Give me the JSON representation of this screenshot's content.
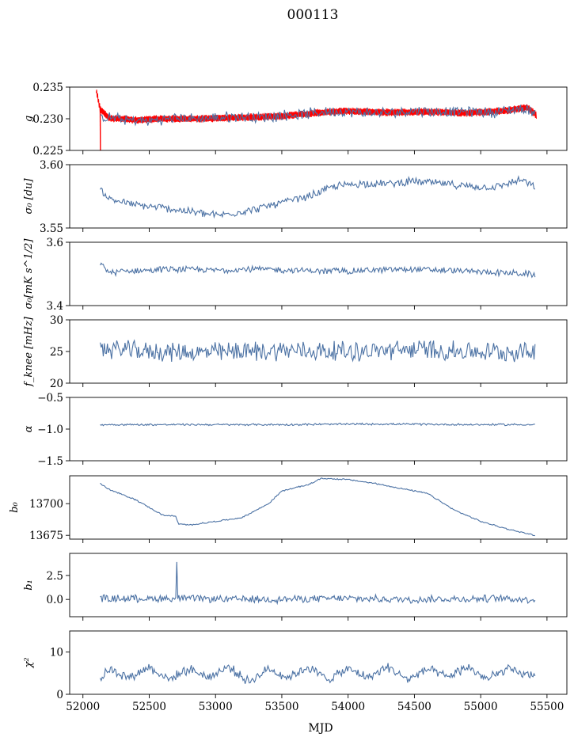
{
  "figure": {
    "title": "000113",
    "xlabel": "MJD"
  },
  "colors": {
    "series": "#4c72a4",
    "overlay": "#ff0000",
    "axis": "#000000"
  },
  "chart_data": [
    {
      "id": "g",
      "type": "line",
      "ylabel": "g",
      "ylim": [
        0.225,
        0.235
      ],
      "yticks": [
        "0.225",
        "0.230",
        "0.235"
      ],
      "xlim": [
        51900,
        55650
      ],
      "grid": false,
      "series": [
        {
          "style": "band",
          "color": "#ff0000",
          "x": [
            52100,
            52130,
            52200,
            52400,
            52600,
            52900,
            53200,
            53500,
            53800,
            54000,
            54300,
            54600,
            54900,
            55200,
            55350,
            55420
          ],
          "y": [
            0.2345,
            0.2315,
            0.2301,
            0.2298,
            0.23,
            0.23,
            0.2302,
            0.2304,
            0.231,
            0.2312,
            0.231,
            0.2311,
            0.2309,
            0.2313,
            0.2318,
            0.2306
          ],
          "spread": 0.0006
        },
        {
          "style": "line",
          "color": "#4c72a4",
          "x": [
            52130,
            52200,
            52300,
            52500,
            52700,
            52900,
            53100,
            53300,
            53500,
            53700,
            53900,
            54100,
            54300,
            54500,
            54700,
            54900,
            55100,
            55300,
            55410
          ],
          "y": [
            0.23,
            0.2302,
            0.2298,
            0.2297,
            0.2301,
            0.23,
            0.2303,
            0.2302,
            0.2305,
            0.2308,
            0.2312,
            0.231,
            0.2309,
            0.2313,
            0.2311,
            0.2312,
            0.231,
            0.2316,
            0.2312
          ],
          "noise": 0.001
        }
      ]
    },
    {
      "id": "sigma0_du",
      "type": "line",
      "ylabel": "σ₀ [du]",
      "ylim": [
        3.55,
        3.6
      ],
      "yticks": [
        "3.55",
        "3.60"
      ],
      "series": [
        {
          "color": "#4c72a4",
          "x": [
            52130,
            52200,
            52400,
            52600,
            52800,
            53000,
            53100,
            53300,
            53500,
            53700,
            53900,
            54100,
            54300,
            54500,
            54700,
            54900,
            55100,
            55300,
            55410
          ],
          "y": [
            3.58,
            3.573,
            3.568,
            3.566,
            3.563,
            3.56,
            3.561,
            3.565,
            3.57,
            3.575,
            3.583,
            3.585,
            3.585,
            3.587,
            3.585,
            3.583,
            3.582,
            3.588,
            3.582
          ],
          "noise": 0.0035
        }
      ]
    },
    {
      "id": "sigma0_mk",
      "type": "line",
      "ylabel": "σ₀[mK s^1/2]",
      "ylim": [
        3.4,
        3.6
      ],
      "yticks": [
        "3.4",
        "3.6"
      ],
      "series": [
        {
          "color": "#4c72a4",
          "x": [
            52130,
            52200,
            52400,
            52700,
            53000,
            53300,
            53600,
            53900,
            54200,
            54500,
            54800,
            55100,
            55410
          ],
          "y": [
            3.53,
            3.505,
            3.51,
            3.515,
            3.512,
            3.515,
            3.512,
            3.508,
            3.512,
            3.515,
            3.51,
            3.505,
            3.498
          ],
          "noise": 0.012
        }
      ]
    },
    {
      "id": "fknee",
      "type": "line",
      "ylabel": "f_knee [mHz]",
      "ylim": [
        20,
        30
      ],
      "yticks": [
        "20",
        "25",
        "30"
      ],
      "series": [
        {
          "color": "#4c72a4",
          "x": [
            52130,
            52500,
            53000,
            53500,
            54000,
            54500,
            55000,
            55410
          ],
          "y": [
            25.5,
            25.0,
            24.8,
            25.2,
            25.0,
            25.3,
            24.9,
            25.0
          ],
          "noise": 1.8
        }
      ]
    },
    {
      "id": "alpha",
      "type": "line",
      "ylabel": "α",
      "ylim": [
        -1.5,
        -0.5
      ],
      "yticks": [
        "−1.5",
        "−1.0",
        "−0.5"
      ],
      "series": [
        {
          "color": "#4c72a4",
          "x": [
            52130,
            52800,
            53500,
            54200,
            54900,
            55410
          ],
          "y": [
            -0.93,
            -0.93,
            -0.93,
            -0.92,
            -0.93,
            -0.93
          ],
          "noise": 0.018
        }
      ]
    },
    {
      "id": "b0",
      "type": "line",
      "ylabel": "b₀",
      "ylim": [
        13672,
        13722
      ],
      "yticks": [
        "13675",
        "13700"
      ],
      "series": [
        {
          "color": "#4c72a4",
          "x": [
            52130,
            52200,
            52400,
            52600,
            52700,
            52720,
            52800,
            53000,
            53200,
            53400,
            53500,
            53700,
            53800,
            54000,
            54200,
            54400,
            54600,
            54800,
            55000,
            55200,
            55410
          ],
          "y": [
            13716,
            13711,
            13703,
            13691,
            13690,
            13684,
            13683,
            13686,
            13689,
            13700,
            13710,
            13715,
            13720,
            13719,
            13716,
            13712,
            13708,
            13695,
            13686,
            13680,
            13675
          ],
          "noise": 0.6
        }
      ]
    },
    {
      "id": "b1",
      "type": "line",
      "ylabel": "b₁",
      "ylim": [
        -1.8,
        4.8
      ],
      "yticks": [
        "0.0",
        "2.5"
      ],
      "series": [
        {
          "color": "#4c72a4",
          "x": [
            52130,
            52700,
            53300,
            53900,
            54500,
            55100,
            55410
          ],
          "y": [
            0.1,
            0.1,
            0.0,
            0.1,
            0.0,
            0.1,
            0.0
          ],
          "noise": 0.45,
          "spikes": [
            {
              "x": 52710,
              "y": 3.9
            }
          ]
        }
      ]
    },
    {
      "id": "chi2",
      "type": "line",
      "ylabel": "χ²",
      "ylim": [
        0,
        15
      ],
      "yticks": [
        "0",
        "10"
      ],
      "series": [
        {
          "color": "#4c72a4",
          "x": [
            52130,
            52200,
            52350,
            52500,
            52650,
            52800,
            52950,
            53100,
            53250,
            53400,
            53550,
            53700,
            53850,
            54000,
            54150,
            54300,
            54450,
            54600,
            54750,
            54900,
            55050,
            55200,
            55350,
            55410
          ],
          "y": [
            3.5,
            6.0,
            4.0,
            6.5,
            3.5,
            6.0,
            4.0,
            6.5,
            3.0,
            6.0,
            4.0,
            6.5,
            3.5,
            6.0,
            4.0,
            6.5,
            3.5,
            6.0,
            4.0,
            6.5,
            3.5,
            6.0,
            4.5,
            5.0
          ],
          "noise": 1.3
        }
      ]
    }
  ],
  "xaxis": {
    "ticks": [
      52000,
      52500,
      53000,
      53500,
      54000,
      54500,
      55000,
      55500
    ]
  }
}
